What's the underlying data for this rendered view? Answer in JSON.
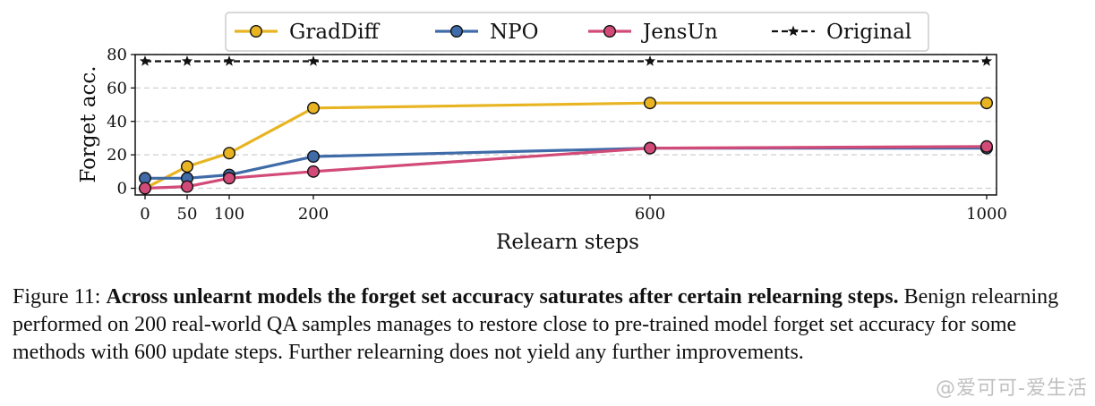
{
  "chart_data": {
    "type": "line",
    "xlabel": "Relearn steps",
    "ylabel": "Forget acc.",
    "x": [
      0,
      50,
      100,
      200,
      600,
      1000
    ],
    "x_ticks": [
      "0",
      "50",
      "100",
      "200",
      "600",
      "1000"
    ],
    "y_ticks": [
      "0",
      "20",
      "40",
      "60",
      "80"
    ],
    "xlim": [
      0,
      1000
    ],
    "ylim": [
      -4,
      80
    ],
    "grid": "horizontal dashed",
    "legend_position": "top-center",
    "series": [
      {
        "name": "GradDiff",
        "color": "#e8b422",
        "marker": "circle",
        "line": "solid",
        "values": [
          0,
          13,
          21,
          48,
          51,
          51
        ]
      },
      {
        "name": "NPO",
        "color": "#3f6ba8",
        "marker": "circle",
        "line": "solid",
        "values": [
          6,
          6,
          8,
          19,
          24,
          24
        ]
      },
      {
        "name": "JensUn",
        "color": "#d24a78",
        "marker": "circle",
        "line": "solid",
        "values": [
          0,
          1,
          6,
          10,
          24,
          25
        ]
      },
      {
        "name": "Original",
        "color": "#111111",
        "marker": "star",
        "line": "dashed",
        "values": [
          76,
          76,
          76,
          76,
          76,
          76
        ]
      }
    ]
  },
  "caption": {
    "label": "Figure 11: ",
    "title": "Across unlearnt models the forget set accuracy saturates after certain relearning steps.",
    "body": " Benign relearning performed on 200 real-world QA samples manages to restore close to pre-trained model forget set accuracy for some methods with 600 update steps. Further relearning does not yield any further improvements."
  },
  "watermark": "@爱可可-爱生活"
}
